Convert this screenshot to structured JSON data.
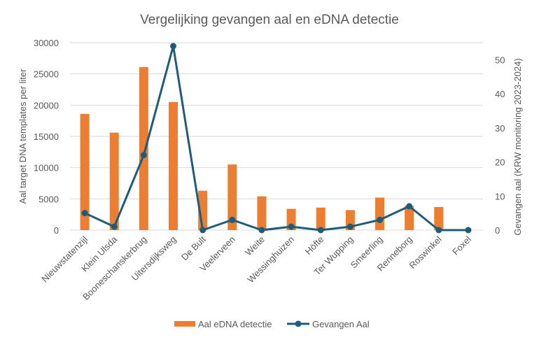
{
  "chart_data": {
    "type": "bar",
    "title": "Vergelijking gevangen aal en eDNA detectie",
    "categories": [
      "Nieuwstatenzijl",
      "Klein Ulsda",
      "Booneschanskerbrug",
      "Uitersdijksweg",
      "De Bult",
      "Veelerveen",
      "Weite",
      "Wessinghuizen",
      "Höfte",
      "Ter Wupping",
      "Smeerling",
      "Renneborg",
      "Roswinkel",
      "Foxel"
    ],
    "series": [
      {
        "name": "Aal eDNA detectie",
        "type": "bar",
        "axis": "left",
        "color": "#ED7D31",
        "values": [
          18600,
          15600,
          26100,
          20500,
          6300,
          10500,
          5400,
          3400,
          3600,
          3200,
          5200,
          3900,
          3700,
          0
        ]
      },
      {
        "name": "Gevangen Aal",
        "type": "line",
        "axis": "right",
        "color": "#1F5C7A",
        "values": [
          5,
          1,
          22,
          54,
          0,
          3,
          0,
          1,
          0,
          1,
          3,
          7,
          0,
          0
        ]
      }
    ],
    "ylabel": "Aal target DNA templates per liter",
    "y2label": "Gevangen aal (KRW monitoring 2023-2024)",
    "xlabel": "",
    "ylim": [
      0,
      30000
    ],
    "y2lim": [
      0,
      55
    ],
    "yticks": [
      "0",
      "5000",
      "10000",
      "15000",
      "20000",
      "25000",
      "30000"
    ],
    "y2ticks": [
      "0",
      "10",
      "20",
      "30",
      "40",
      "50"
    ],
    "grid": true,
    "legend": "bottom"
  }
}
